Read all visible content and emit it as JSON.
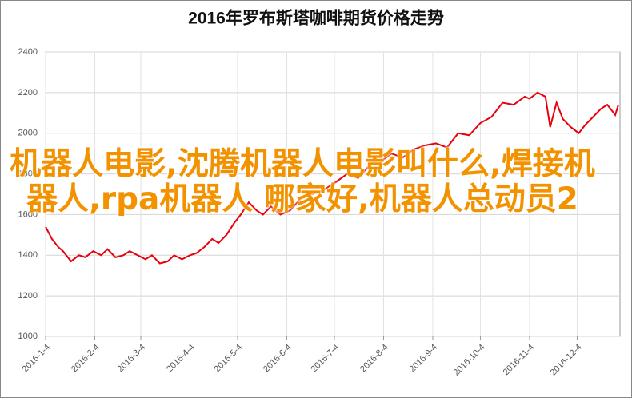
{
  "chart_data": {
    "type": "line",
    "title": "2016年罗布斯塔咖啡期货价格走势",
    "x": [
      "2016-1-4",
      "2016-1-8",
      "2016-1-12",
      "2016-1-15",
      "2016-1-20",
      "2016-1-25",
      "2016-1-29",
      "2016-2-3",
      "2016-2-8",
      "2016-2-12",
      "2016-2-17",
      "2016-2-22",
      "2016-2-26",
      "2016-3-2",
      "2016-3-7",
      "2016-3-11",
      "2016-3-16",
      "2016-3-21",
      "2016-3-25",
      "2016-3-30",
      "2016-4-4",
      "2016-4-8",
      "2016-4-13",
      "2016-4-18",
      "2016-4-22",
      "2016-4-27",
      "2016-5-2",
      "2016-5-6",
      "2016-5-11",
      "2016-5-16",
      "2016-5-20",
      "2016-5-25",
      "2016-5-31",
      "2016-6-6",
      "2016-6-13",
      "2016-6-20",
      "2016-6-27",
      "2016-7-5",
      "2016-7-12",
      "2016-7-19",
      "2016-7-26",
      "2016-8-2",
      "2016-8-9",
      "2016-8-16",
      "2016-8-23",
      "2016-8-30",
      "2016-9-6",
      "2016-9-13",
      "2016-9-20",
      "2016-9-27",
      "2016-10-4",
      "2016-10-11",
      "2016-10-18",
      "2016-10-25",
      "2016-11-1",
      "2016-11-4",
      "2016-11-9",
      "2016-11-14",
      "2016-11-17",
      "2016-11-21",
      "2016-11-25",
      "2016-11-30",
      "2016-12-5",
      "2016-12-9",
      "2016-12-14",
      "2016-12-19",
      "2016-12-23",
      "2016-12-28",
      "2016-12-30"
    ],
    "series": [
      {
        "name": "罗布斯塔咖啡期货",
        "color": "#e8000b",
        "values": [
          1540,
          1480,
          1440,
          1420,
          1370,
          1400,
          1390,
          1420,
          1400,
          1430,
          1390,
          1400,
          1420,
          1400,
          1380,
          1400,
          1360,
          1370,
          1400,
          1380,
          1400,
          1410,
          1440,
          1480,
          1460,
          1500,
          1560,
          1600,
          1660,
          1620,
          1600,
          1640,
          1600,
          1620,
          1680,
          1700,
          1720,
          1760,
          1800,
          1780,
          1840,
          1860,
          1900,
          1880,
          1920,
          1940,
          1950,
          1930,
          2000,
          1990,
          2050,
          2080,
          2150,
          2140,
          2180,
          2170,
          2200,
          2180,
          2030,
          2150,
          2070,
          2030,
          2000,
          2040,
          2080,
          2120,
          2140,
          2090,
          2140
        ]
      }
    ],
    "xlim": [
      "2016-1-4",
      "2016-12-31"
    ],
    "xticks": [
      "2016-1-4",
      "2016-2-4",
      "2016-3-4",
      "2016-4-4",
      "2016-5-4",
      "2016-6-4",
      "2016-7-4",
      "2016-8-4",
      "2016-9-4",
      "2016-10-4",
      "2016-11-4",
      "2016-12-4"
    ],
    "ylim": [
      1000,
      2400
    ],
    "yticks": [
      1000,
      1200,
      1400,
      1600,
      1800,
      2000,
      2200,
      2400
    ],
    "grid": true
  },
  "overlay": {
    "text": "机器人电影,沈腾机器人电影叫什么,焊接机器人,rpa机器人 哪家好,机器人总动员2"
  }
}
